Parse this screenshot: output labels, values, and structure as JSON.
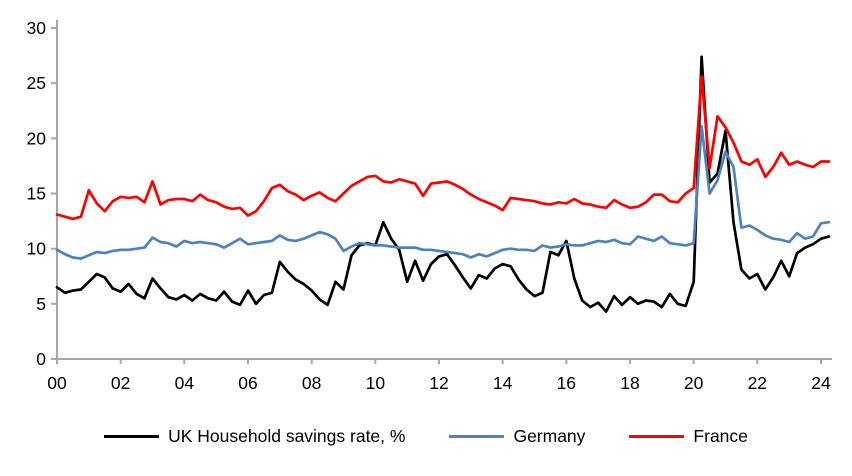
{
  "chart_data": {
    "type": "line",
    "title": "",
    "x_start": 2000,
    "x_step": 0.25,
    "x_end": 2024.25,
    "xlim": [
      2000,
      2024.35
    ],
    "ylim": [
      0,
      30
    ],
    "grid": false,
    "legend_position": "bottom",
    "axis_color": "#A6A6A6",
    "label_color": "#000000",
    "y_ticks": [
      "0",
      "5",
      "10",
      "15",
      "20",
      "25",
      "30"
    ],
    "x_ticks": [
      {
        "year": 2000,
        "label": "00"
      },
      {
        "year": 2002,
        "label": "02"
      },
      {
        "year": 2004,
        "label": "04"
      },
      {
        "year": 2006,
        "label": "06"
      },
      {
        "year": 2008,
        "label": "08"
      },
      {
        "year": 2010,
        "label": "10"
      },
      {
        "year": 2012,
        "label": "12"
      },
      {
        "year": 2014,
        "label": "14"
      },
      {
        "year": 2016,
        "label": "16"
      },
      {
        "year": 2018,
        "label": "18"
      },
      {
        "year": 2020,
        "label": "20"
      },
      {
        "year": 2022,
        "label": "22"
      },
      {
        "year": 2024,
        "label": "24"
      }
    ],
    "series": [
      {
        "name": "UK Household savings rate, %",
        "color": "#000000",
        "values": [
          6.5,
          6.0,
          6.2,
          6.3,
          7.0,
          7.7,
          7.4,
          6.4,
          6.1,
          6.8,
          5.9,
          5.5,
          7.3,
          6.4,
          5.6,
          5.4,
          5.8,
          5.3,
          5.9,
          5.5,
          5.3,
          6.1,
          5.2,
          4.9,
          6.2,
          5.0,
          5.8,
          6.0,
          8.8,
          7.9,
          7.2,
          6.8,
          6.2,
          5.4,
          4.9,
          7.0,
          6.3,
          9.4,
          10.3,
          10.5,
          10.3,
          12.4,
          10.9,
          9.9,
          7.0,
          8.9,
          7.1,
          8.6,
          9.3,
          9.5,
          8.5,
          7.4,
          6.4,
          7.6,
          7.3,
          8.2,
          8.6,
          8.4,
          7.2,
          6.3,
          5.7,
          6.0,
          9.7,
          9.4,
          10.7,
          7.3,
          5.3,
          4.7,
          5.1,
          4.3,
          5.7,
          4.9,
          5.6,
          5.0,
          5.3,
          5.2,
          4.7,
          5.9,
          5.0,
          4.8,
          7.0,
          27.4,
          16.0,
          16.8,
          20.7,
          12.4,
          8.1,
          7.3,
          7.7,
          6.3,
          7.4,
          8.9,
          7.5,
          9.6,
          10.1,
          10.4,
          10.9,
          11.1
        ]
      },
      {
        "name": "Germany",
        "color": "#4F81BD",
        "values": [
          9.9,
          9.5,
          9.2,
          9.1,
          9.4,
          9.7,
          9.6,
          9.8,
          9.9,
          9.9,
          10.0,
          10.1,
          11.0,
          10.6,
          10.5,
          10.2,
          10.7,
          10.5,
          10.6,
          10.5,
          10.4,
          10.1,
          10.5,
          10.9,
          10.4,
          10.5,
          10.6,
          10.7,
          11.2,
          10.8,
          10.7,
          10.9,
          11.2,
          11.5,
          11.3,
          10.9,
          9.8,
          10.2,
          10.5,
          10.4,
          10.3,
          10.3,
          10.2,
          10.1,
          10.1,
          10.1,
          9.9,
          9.9,
          9.8,
          9.7,
          9.6,
          9.5,
          9.2,
          9.5,
          9.3,
          9.6,
          9.9,
          10.0,
          9.9,
          9.9,
          9.8,
          10.3,
          10.1,
          10.2,
          10.4,
          10.3,
          10.3,
          10.5,
          10.7,
          10.6,
          10.8,
          10.5,
          10.4,
          11.1,
          10.9,
          10.7,
          11.1,
          10.5,
          10.4,
          10.3,
          10.5,
          21.1,
          15.0,
          16.2,
          18.8,
          17.4,
          11.9,
          12.1,
          11.7,
          11.2,
          10.9,
          10.8,
          10.6,
          11.4,
          10.9,
          11.1,
          12.3,
          12.4
        ]
      },
      {
        "name": "France",
        "color": "#FF0000",
        "values": [
          13.1,
          12.9,
          12.7,
          12.9,
          15.3,
          14.1,
          13.4,
          14.3,
          14.7,
          14.6,
          14.7,
          14.2,
          16.1,
          14.0,
          14.4,
          14.5,
          14.5,
          14.3,
          14.9,
          14.4,
          14.2,
          13.8,
          13.6,
          13.7,
          13.0,
          13.4,
          14.3,
          15.5,
          15.8,
          15.2,
          14.9,
          14.4,
          14.8,
          15.1,
          14.6,
          14.3,
          15.0,
          15.7,
          16.1,
          16.5,
          16.6,
          16.1,
          16.0,
          16.3,
          16.1,
          15.9,
          14.8,
          15.9,
          16.0,
          16.1,
          15.8,
          15.4,
          14.9,
          14.5,
          14.2,
          13.9,
          13.5,
          14.6,
          14.5,
          14.4,
          14.3,
          14.1,
          14.0,
          14.2,
          14.1,
          14.5,
          14.1,
          14.0,
          13.8,
          13.7,
          14.4,
          14.0,
          13.7,
          13.8,
          14.2,
          14.9,
          14.9,
          14.3,
          14.2,
          15.0,
          15.5,
          25.6,
          17.3,
          22.0,
          21.0,
          19.6,
          17.9,
          17.6,
          18.1,
          16.5,
          17.4,
          18.7,
          17.6,
          17.9,
          17.6,
          17.4,
          17.9,
          17.9
        ]
      }
    ]
  },
  "legend": {
    "items": [
      {
        "label": "UK Household savings rate, %",
        "color": "#000000"
      },
      {
        "label": "Germany",
        "color": "#4F81BD"
      },
      {
        "label": "France",
        "color": "#FF0000"
      }
    ]
  }
}
